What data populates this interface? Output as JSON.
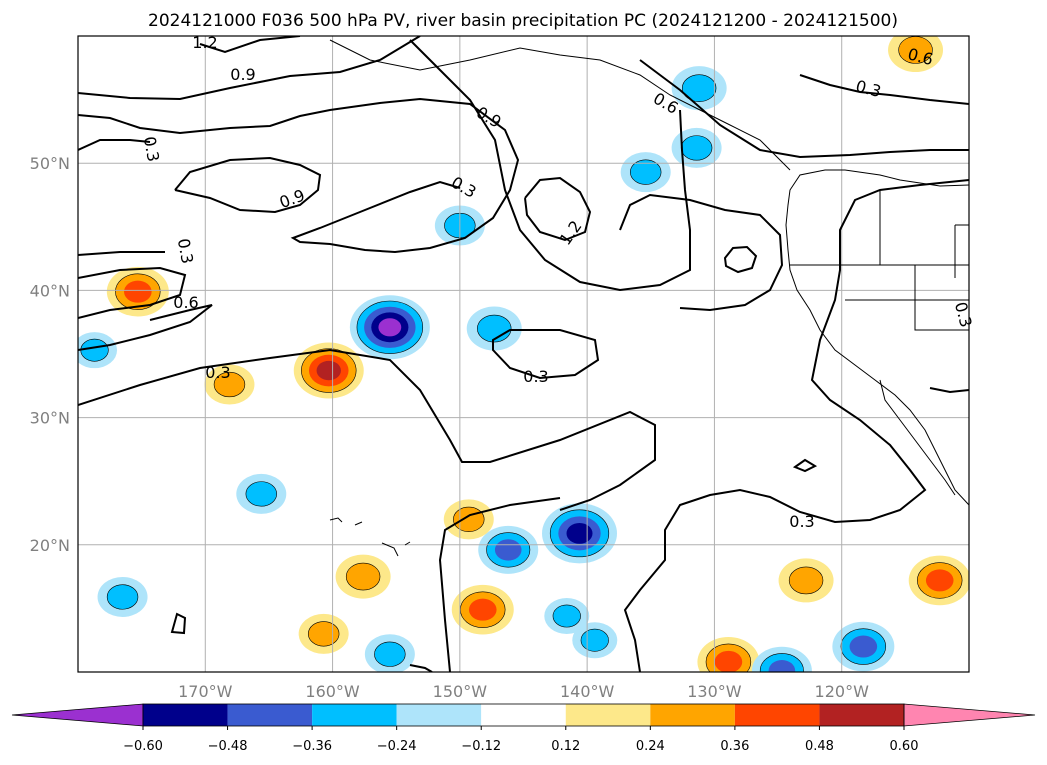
{
  "title": "2024121000 F036 500 hPa PV, river basin precipitation PC (2024121200 - 2024121500)",
  "chart_data": {
    "type": "heatmap",
    "map": {
      "lon_range": [
        -180,
        -110
      ],
      "lat_range": [
        10,
        60
      ],
      "lon_ticks": [
        -170,
        -160,
        -150,
        -140,
        -130,
        -120
      ],
      "lat_ticks": [
        20,
        30,
        40,
        50
      ]
    },
    "x_tick_labels": [
      "170°W",
      "160°W",
      "150°W",
      "140°W",
      "130°W",
      "120°W"
    ],
    "y_tick_labels": [
      "20°N",
      "30°N",
      "40°N",
      "50°N"
    ],
    "colorbar": {
      "ticks": [
        "−0.60",
        "−0.48",
        "−0.36",
        "−0.24",
        "−0.12",
        "0.12",
        "0.24",
        "0.36",
        "0.48",
        "0.60"
      ],
      "levels": [
        -0.6,
        -0.48,
        -0.36,
        -0.24,
        -0.12,
        0.12,
        0.24,
        0.36,
        0.48,
        0.6
      ],
      "colors": [
        "#9b30d0",
        "#00008b",
        "#3a5bd0",
        "#00bfff",
        "#aee4fa",
        "#ffffff",
        "#fde88a",
        "#ffa500",
        "#ff4500",
        "#b22222",
        "#ff85b0"
      ],
      "extend": "both"
    },
    "pv_contour_labels": [
      "1.2",
      "0.9",
      "0.3",
      "0.3",
      "0.9",
      "0.6",
      "0.3",
      "0.6",
      "0.9",
      "0.3",
      "1.2",
      "0.3",
      "0.6",
      "0.3",
      "0.3",
      "0.3",
      "0.3"
    ],
    "precip_blobs": [
      {
        "lon": -175.3,
        "lat": 39.9,
        "value": 0.42
      },
      {
        "lon": -160.3,
        "lat": 33.7,
        "value": 0.5
      },
      {
        "lon": -155.5,
        "lat": 37.1,
        "value": -0.6
      },
      {
        "lon": -147.3,
        "lat": 37.0,
        "value": -0.35
      },
      {
        "lon": -131.2,
        "lat": 55.9,
        "value": -0.35
      },
      {
        "lon": -131.4,
        "lat": 51.2,
        "value": -0.3
      },
      {
        "lon": -135.4,
        "lat": 49.3,
        "value": -0.3
      },
      {
        "lon": -150.0,
        "lat": 45.1,
        "value": -0.3
      },
      {
        "lon": -114.2,
        "lat": 58.9,
        "value": 0.35
      },
      {
        "lon": -168.1,
        "lat": 32.6,
        "value": 0.3
      },
      {
        "lon": -140.6,
        "lat": 20.9,
        "value": -0.55
      },
      {
        "lon": -146.2,
        "lat": 19.6,
        "value": -0.4
      },
      {
        "lon": -149.3,
        "lat": 22.0,
        "value": 0.3
      },
      {
        "lon": -148.2,
        "lat": 14.9,
        "value": 0.42
      },
      {
        "lon": -157.6,
        "lat": 17.5,
        "value": 0.35
      },
      {
        "lon": -176.5,
        "lat": 15.9,
        "value": -0.3
      },
      {
        "lon": -165.6,
        "lat": 24.0,
        "value": -0.3
      },
      {
        "lon": -128.9,
        "lat": 10.8,
        "value": 0.42
      },
      {
        "lon": -124.7,
        "lat": 10.1,
        "value": -0.4
      },
      {
        "lon": -118.3,
        "lat": 12.0,
        "value": -0.42
      },
      {
        "lon": -122.8,
        "lat": 17.2,
        "value": 0.35
      },
      {
        "lon": -112.3,
        "lat": 17.2,
        "value": 0.42
      },
      {
        "lon": -155.5,
        "lat": 11.4,
        "value": -0.3
      },
      {
        "lon": -141.6,
        "lat": 14.4,
        "value": -0.25
      },
      {
        "lon": -139.4,
        "lat": 12.5,
        "value": -0.25
      },
      {
        "lon": -160.7,
        "lat": 13.0,
        "value": 0.3
      },
      {
        "lon": -178.7,
        "lat": 35.3,
        "value": -0.25
      }
    ]
  }
}
